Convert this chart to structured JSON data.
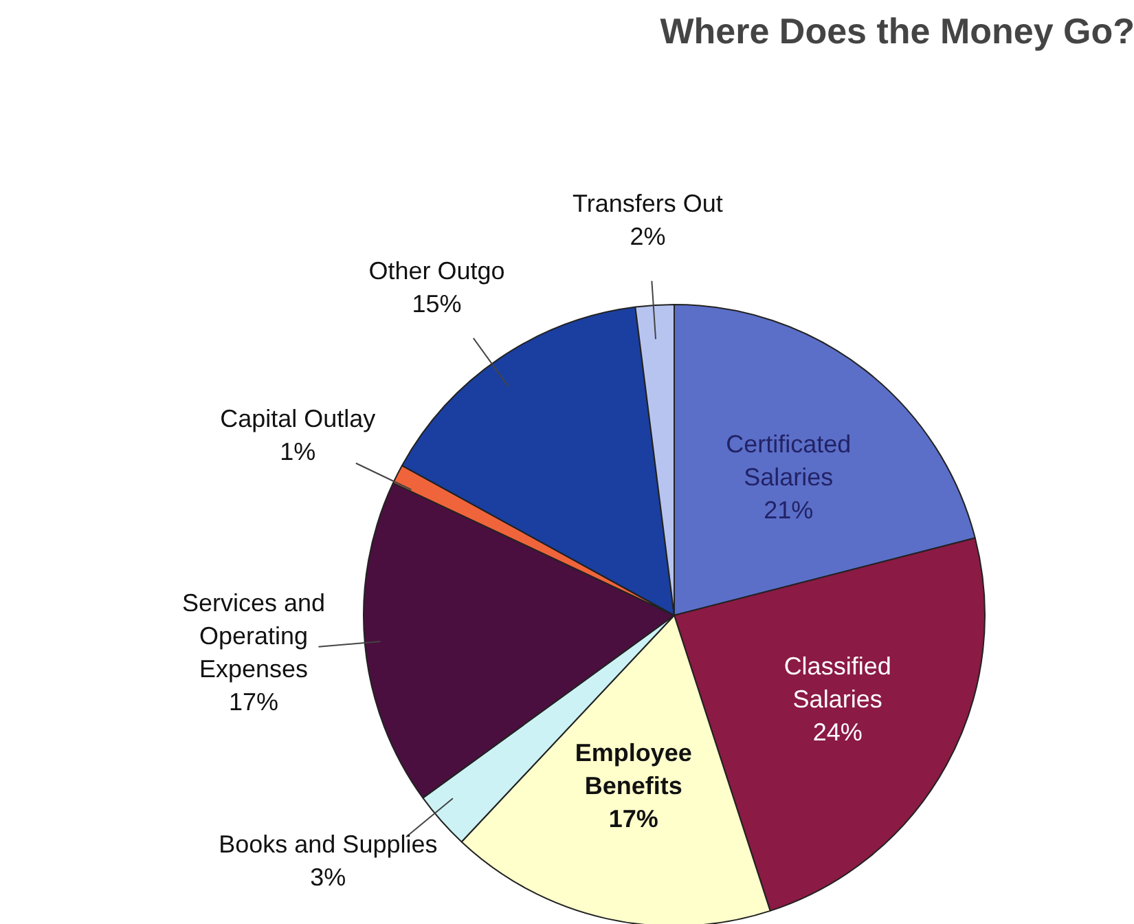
{
  "chart_data": {
    "type": "pie",
    "title": "Where Does the Money Go?",
    "categories": [
      "Certificated Salaries",
      "Classified Salaries",
      "Employee Benefits",
      "Books and Supplies",
      "Services and Operating Expenses",
      "Capital Outlay",
      "Other Outgo",
      "Transfers Out"
    ],
    "values": [
      21,
      24,
      17,
      3,
      17,
      1,
      15,
      2
    ],
    "colors": [
      "#5b6fc8",
      "#8b1a45",
      "#ffffcc",
      "#ccf2f5",
      "#4a0f3f",
      "#f0643c",
      "#1a3fa0",
      "#b8c4f0"
    ],
    "value_labels": [
      "21%",
      "24%",
      "17%",
      "3%",
      "17%",
      "1%",
      "15%",
      "2%"
    ]
  }
}
